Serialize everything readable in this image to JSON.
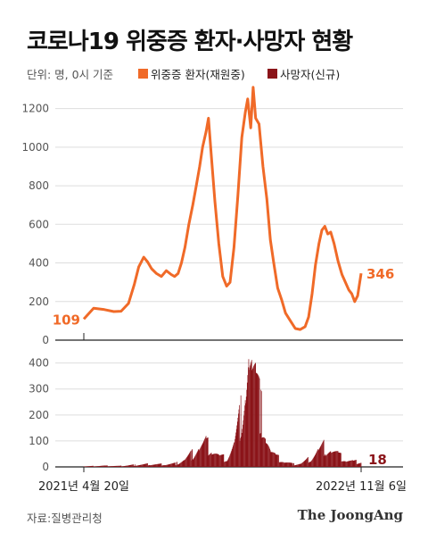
{
  "title": "코로나19 위중증 환자·사망자 현황",
  "unit_note": "단위: 명, 0시 기준",
  "source": "자료:질병관리청",
  "logo": "The JoongAng",
  "colors": {
    "critical": "#f06a28",
    "deaths": "#8b1419",
    "axis": "#222222",
    "grid": "#dddddd",
    "text": "#555555"
  },
  "chart_data": [
    {
      "type": "line",
      "series": [
        {
          "name": "위중증 환자(재원중)",
          "color": "#f06a28"
        }
      ],
      "y_ticks": [
        0,
        200,
        400,
        600,
        800,
        1000,
        1200
      ],
      "ylim": [
        0,
        1300
      ],
      "grid": true,
      "legend_position": "top",
      "x_range": [
        "2021-04-20",
        "2022-11-06"
      ],
      "start_label": "109",
      "end_label": "346",
      "start_value": 109,
      "end_value": 346,
      "points": [
        [
          "2021-04-20",
          109
        ],
        [
          "2021-05-10",
          165
        ],
        [
          "2021-06-01",
          158
        ],
        [
          "2021-06-20",
          148
        ],
        [
          "2021-07-05",
          150
        ],
        [
          "2021-07-20",
          190
        ],
        [
          "2021-08-01",
          290
        ],
        [
          "2021-08-10",
          380
        ],
        [
          "2021-08-20",
          430
        ],
        [
          "2021-08-28",
          405
        ],
        [
          "2021-09-05",
          370
        ],
        [
          "2021-09-15",
          345
        ],
        [
          "2021-09-25",
          330
        ],
        [
          "2021-10-05",
          360
        ],
        [
          "2021-10-15",
          340
        ],
        [
          "2021-10-22",
          330
        ],
        [
          "2021-10-29",
          345
        ],
        [
          "2021-11-05",
          400
        ],
        [
          "2021-11-12",
          480
        ],
        [
          "2021-11-20",
          600
        ],
        [
          "2021-11-28",
          700
        ],
        [
          "2021-12-05",
          800
        ],
        [
          "2021-12-12",
          900
        ],
        [
          "2021-12-18",
          1000
        ],
        [
          "2021-12-25",
          1080
        ],
        [
          "2021-12-30",
          1150
        ],
        [
          "2022-01-05",
          950
        ],
        [
          "2022-01-12",
          720
        ],
        [
          "2022-01-20",
          500
        ],
        [
          "2022-01-28",
          330
        ],
        [
          "2022-02-05",
          280
        ],
        [
          "2022-02-12",
          300
        ],
        [
          "2022-02-20",
          480
        ],
        [
          "2022-02-28",
          750
        ],
        [
          "2022-03-08",
          1050
        ],
        [
          "2022-03-15",
          1180
        ],
        [
          "2022-03-20",
          1250
        ],
        [
          "2022-03-26",
          1100
        ],
        [
          "2022-03-31",
          1310
        ],
        [
          "2022-04-05",
          1150
        ],
        [
          "2022-04-12",
          1120
        ],
        [
          "2022-04-20",
          900
        ],
        [
          "2022-04-28",
          730
        ],
        [
          "2022-05-05",
          520
        ],
        [
          "2022-05-12",
          400
        ],
        [
          "2022-05-20",
          270
        ],
        [
          "2022-05-28",
          210
        ],
        [
          "2022-06-05",
          140
        ],
        [
          "2022-06-15",
          100
        ],
        [
          "2022-06-25",
          60
        ],
        [
          "2022-07-05",
          55
        ],
        [
          "2022-07-15",
          70
        ],
        [
          "2022-07-22",
          120
        ],
        [
          "2022-07-29",
          240
        ],
        [
          "2022-08-05",
          390
        ],
        [
          "2022-08-12",
          500
        ],
        [
          "2022-08-18",
          570
        ],
        [
          "2022-08-24",
          590
        ],
        [
          "2022-08-30",
          550
        ],
        [
          "2022-09-05",
          560
        ],
        [
          "2022-09-12",
          500
        ],
        [
          "2022-09-20",
          410
        ],
        [
          "2022-09-28",
          340
        ],
        [
          "2022-10-05",
          300
        ],
        [
          "2022-10-12",
          260
        ],
        [
          "2022-10-18",
          240
        ],
        [
          "2022-10-24",
          200
        ],
        [
          "2022-10-30",
          230
        ],
        [
          "2022-11-06",
          346
        ]
      ]
    },
    {
      "type": "bar",
      "series": [
        {
          "name": "사망자(신규)",
          "color": "#8b1419"
        }
      ],
      "y_ticks": [
        0,
        100,
        200,
        300,
        400
      ],
      "ylim": [
        0,
        440
      ],
      "grid": true,
      "x_range": [
        "2021-04-20",
        "2022-11-06"
      ],
      "x_tick_labels": [
        "2021년 4월 20일",
        "2022년 11월 6일"
      ],
      "end_label": "18",
      "end_value": 18,
      "points": [
        [
          "2021-04-20",
          2
        ],
        [
          "2021-06-01",
          4
        ],
        [
          "2021-07-01",
          3
        ],
        [
          "2021-08-01",
          7
        ],
        [
          "2021-09-01",
          10
        ],
        [
          "2021-10-01",
          9
        ],
        [
          "2021-10-25",
          12
        ],
        [
          "2021-11-10",
          25
        ],
        [
          "2021-11-25",
          45
        ],
        [
          "2021-12-10",
          70
        ],
        [
          "2021-12-25",
          85
        ],
        [
          "2022-01-05",
          70
        ],
        [
          "2022-01-20",
          40
        ],
        [
          "2022-02-05",
          30
        ],
        [
          "2022-02-20",
          80
        ],
        [
          "2022-03-05",
          180
        ],
        [
          "2022-03-15",
          300
        ],
        [
          "2022-03-22",
          420
        ],
        [
          "2022-03-28",
          380
        ],
        [
          "2022-04-05",
          320
        ],
        [
          "2022-04-15",
          220
        ],
        [
          "2022-04-25",
          130
        ],
        [
          "2022-05-05",
          60
        ],
        [
          "2022-05-15",
          40
        ],
        [
          "2022-06-01",
          20
        ],
        [
          "2022-06-20",
          10
        ],
        [
          "2022-07-05",
          12
        ],
        [
          "2022-07-25",
          30
        ],
        [
          "2022-08-10",
          60
        ],
        [
          "2022-08-25",
          75
        ],
        [
          "2022-09-05",
          65
        ],
        [
          "2022-09-20",
          45
        ],
        [
          "2022-10-05",
          25
        ],
        [
          "2022-10-20",
          20
        ],
        [
          "2022-11-06",
          18
        ]
      ]
    }
  ]
}
